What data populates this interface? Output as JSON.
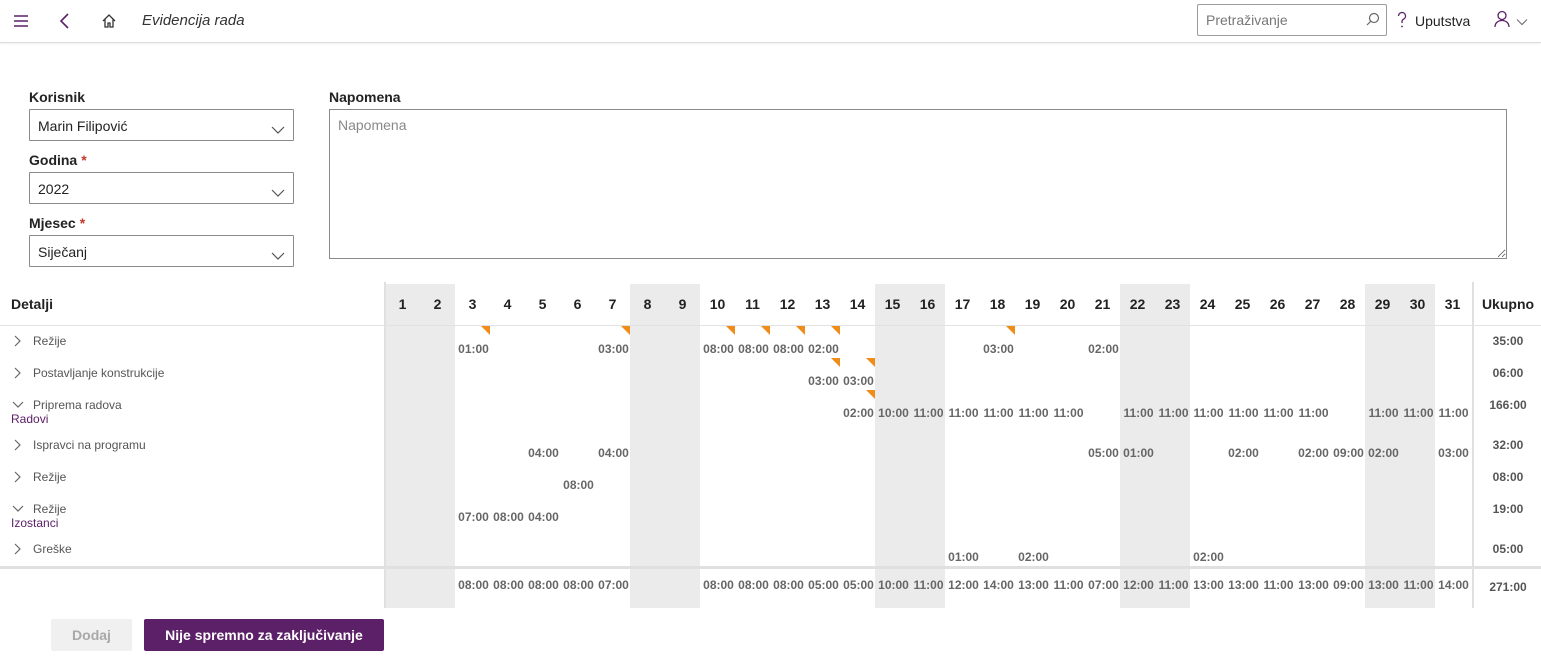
{
  "header": {
    "title": "Evidencija rada",
    "search_placeholder": "Pretraživanje",
    "help_label": "Uputstva"
  },
  "form": {
    "korisnik_label": "Korisnik",
    "korisnik_value": "Marin Filipović",
    "godina_label": "Godina",
    "godina_value": "2022",
    "mjesec_label": "Mjesec",
    "mjesec_value": "Siječanj",
    "required_mark": "*",
    "napomena_label": "Napomena",
    "napomena_placeholder": "Napomena"
  },
  "grid": {
    "details_header": "Detalji",
    "total_header": "Ukupno",
    "days": [
      "1",
      "2",
      "3",
      "4",
      "5",
      "6",
      "7",
      "8",
      "9",
      "10",
      "11",
      "12",
      "13",
      "14",
      "15",
      "16",
      "17",
      "18",
      "19",
      "20",
      "21",
      "22",
      "23",
      "24",
      "25",
      "26",
      "27",
      "28",
      "29",
      "30",
      "31"
    ],
    "weekend_days": [
      1,
      2,
      8,
      9,
      15,
      16,
      22,
      23,
      29,
      30
    ],
    "rows": [
      {
        "label": "Režije",
        "expanded": false,
        "group": "",
        "total": "35:00",
        "cells": {
          "3": "01:00",
          "7": "03:00",
          "10": "08:00",
          "11": "08:00",
          "12": "08:00",
          "13": "02:00",
          "18": "03:00",
          "21": "02:00"
        },
        "flags": [
          3,
          7,
          10,
          11,
          12,
          13,
          18
        ]
      },
      {
        "label": "Postavljanje konstrukcije",
        "expanded": false,
        "group": "",
        "total": "06:00",
        "cells": {
          "13": "03:00",
          "14": "03:00"
        },
        "flags": [
          13,
          14
        ]
      },
      {
        "label": "Priprema radova",
        "expanded": true,
        "group": "Radovi",
        "total": "166:00",
        "cells": {
          "14": "02:00",
          "15": "10:00",
          "16": "11:00",
          "17": "11:00",
          "18": "11:00",
          "19": "11:00",
          "20": "11:00",
          "22": "11:00",
          "23": "11:00",
          "24": "11:00",
          "25": "11:00",
          "26": "11:00",
          "27": "11:00",
          "29": "11:00",
          "30": "11:00",
          "31": "11:00"
        },
        "flags": [
          14
        ]
      },
      {
        "label": "Ispravci na programu",
        "expanded": false,
        "group": "",
        "total": "32:00",
        "cells": {
          "5": "04:00",
          "7": "04:00",
          "21": "05:00",
          "22": "01:00",
          "25": "02:00",
          "27": "02:00",
          "28": "09:00",
          "29": "02:00",
          "31": "03:00"
        },
        "flags": []
      },
      {
        "label": "Režije",
        "expanded": false,
        "group": "",
        "total": "08:00",
        "cells": {
          "6": "08:00"
        },
        "flags": []
      },
      {
        "label": "Režije",
        "expanded": true,
        "group": "Izostanci",
        "total": "19:00",
        "cells": {
          "3": "07:00",
          "4": "08:00",
          "5": "04:00"
        },
        "flags": []
      },
      {
        "label": "Greške",
        "expanded": false,
        "group": "",
        "total": "05:00",
        "cells": {
          "17": "01:00",
          "19": "02:00",
          "24": "02:00"
        },
        "flags": []
      }
    ],
    "totals": {
      "3": "08:00",
      "4": "08:00",
      "5": "08:00",
      "6": "08:00",
      "7": "07:00",
      "10": "08:00",
      "11": "08:00",
      "12": "08:00",
      "13": "05:00",
      "14": "05:00",
      "15": "10:00",
      "16": "11:00",
      "17": "12:00",
      "18": "14:00",
      "19": "13:00",
      "20": "11:00",
      "21": "07:00",
      "22": "12:00",
      "23": "11:00",
      "24": "13:00",
      "25": "13:00",
      "26": "11:00",
      "27": "13:00",
      "28": "09:00",
      "29": "13:00",
      "30": "11:00",
      "31": "14:00"
    },
    "grand_total": "271:00"
  },
  "buttons": {
    "add_label": "Dodaj",
    "lock_label": "Nije spremno za zaključivanje"
  },
  "colors": {
    "accent": "#5c2068",
    "flag": "#f08c1a",
    "weekend": "#ebebeb"
  }
}
